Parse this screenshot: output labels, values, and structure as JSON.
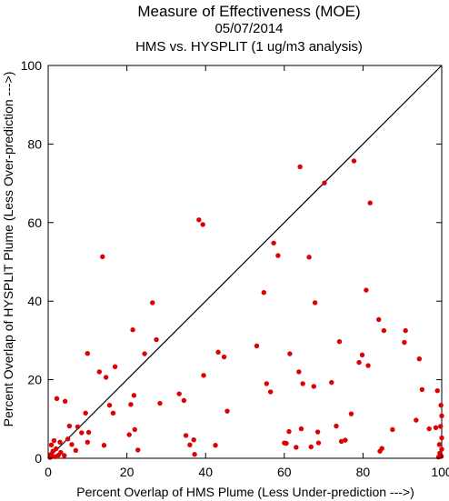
{
  "chart_data": {
    "type": "scatter",
    "title": "Measure of Effectiveness (MOE)",
    "subtitle_date": "05/07/2014",
    "subtitle_analysis": "HMS vs. HYSPLIT  (1 ug/m3 analysis)",
    "xlabel": "Percent Overlap of HMS Plume (Less Under-prediction --->)",
    "ylabel": "Percent Overlap of HYSPLIT Plume (Less Over-prediction --->)",
    "xlim": [
      0,
      100
    ],
    "ylim": [
      0,
      100
    ],
    "x_ticks": [
      "0",
      "20",
      "40",
      "60",
      "80",
      "100"
    ],
    "y_ticks": [
      "0",
      "20",
      "40",
      "60",
      "80",
      "100"
    ],
    "reference_line": "y = x",
    "grid": false,
    "colors": {
      "points": "#e00000",
      "line": "#000000",
      "axes": "#000000"
    },
    "points": [
      [
        0.5,
        0.2
      ],
      [
        0.7,
        1.0
      ],
      [
        0.8,
        3.4
      ],
      [
        1.0,
        0.6
      ],
      [
        1.2,
        1.8
      ],
      [
        1.5,
        4.5
      ],
      [
        1.8,
        0.4
      ],
      [
        2.0,
        2.4
      ],
      [
        2.2,
        15.2
      ],
      [
        2.6,
        0.8
      ],
      [
        3.0,
        4.1
      ],
      [
        3.2,
        1.5
      ],
      [
        4.1,
        0.7
      ],
      [
        4.3,
        14.5
      ],
      [
        5.0,
        4.9
      ],
      [
        5.4,
        8.2
      ],
      [
        6.0,
        3.5
      ],
      [
        7.0,
        2.0
      ],
      [
        7.5,
        8.0
      ],
      [
        8.5,
        6.5
      ],
      [
        9.5,
        11.5
      ],
      [
        10.0,
        26.7
      ],
      [
        10.3,
        6.6
      ],
      [
        10.0,
        4.1
      ],
      [
        13.0,
        22.0
      ],
      [
        13.8,
        51.3
      ],
      [
        14.2,
        3.3
      ],
      [
        14.7,
        20.6
      ],
      [
        15.6,
        13.5
      ],
      [
        16.5,
        11.5
      ],
      [
        17.0,
        23.3
      ],
      [
        20.6,
        6.0
      ],
      [
        21.0,
        13.7
      ],
      [
        21.5,
        32.7
      ],
      [
        21.8,
        16.0
      ],
      [
        22.0,
        7.3
      ],
      [
        22.8,
        2.1
      ],
      [
        24.5,
        26.6
      ],
      [
        26.5,
        39.6
      ],
      [
        27.5,
        30.2
      ],
      [
        28.4,
        14.0
      ],
      [
        33.3,
        16.4
      ],
      [
        34.5,
        14.7
      ],
      [
        35.0,
        5.8
      ],
      [
        36.0,
        3.4
      ],
      [
        37.0,
        4.7
      ],
      [
        37.2,
        1.0
      ],
      [
        38.3,
        60.7
      ],
      [
        39.3,
        59.5
      ],
      [
        39.5,
        21.1
      ],
      [
        42.5,
        3.3
      ],
      [
        43.2,
        27.0
      ],
      [
        44.7,
        25.8
      ],
      [
        45.5,
        12.0
      ],
      [
        53.0,
        28.6
      ],
      [
        54.8,
        42.2
      ],
      [
        55.5,
        19.0
      ],
      [
        56.5,
        16.9
      ],
      [
        57.3,
        54.8
      ],
      [
        58.4,
        51.6
      ],
      [
        60.0,
        3.9
      ],
      [
        60.5,
        3.8
      ],
      [
        61.2,
        6.8
      ],
      [
        61.4,
        26.6
      ],
      [
        63.0,
        2.8
      ],
      [
        63.7,
        22.0
      ],
      [
        64.0,
        74.2
      ],
      [
        64.3,
        7.5
      ],
      [
        64.7,
        19.0
      ],
      [
        66.3,
        51.2
      ],
      [
        66.8,
        2.9
      ],
      [
        67.5,
        18.3
      ],
      [
        67.8,
        39.6
      ],
      [
        68.5,
        6.7
      ],
      [
        68.7,
        3.9
      ],
      [
        70.2,
        70.1
      ],
      [
        72.0,
        19.3
      ],
      [
        73.2,
        8.2
      ],
      [
        74.0,
        29.7
      ],
      [
        74.5,
        4.3
      ],
      [
        75.5,
        4.6
      ],
      [
        77.0,
        11.3
      ],
      [
        77.7,
        75.7
      ],
      [
        79.0,
        24.4
      ],
      [
        79.8,
        26.3
      ],
      [
        80.8,
        42.8
      ],
      [
        81.3,
        23.6
      ],
      [
        81.8,
        65.0
      ],
      [
        84.0,
        35.3
      ],
      [
        84.3,
        1.8
      ],
      [
        84.8,
        2.5
      ],
      [
        85.3,
        32.5
      ],
      [
        87.5,
        7.3
      ],
      [
        90.5,
        29.5
      ],
      [
        90.8,
        32.5
      ],
      [
        93.5,
        9.7
      ],
      [
        94.3,
        25.3
      ],
      [
        95.0,
        17.5
      ],
      [
        96.8,
        7.5
      ],
      [
        98.5,
        7.8
      ],
      [
        98.9,
        17.2
      ],
      [
        99.2,
        0.3
      ],
      [
        99.4,
        3.5
      ],
      [
        99.5,
        1.3
      ],
      [
        99.7,
        8.1
      ],
      [
        99.8,
        13.5
      ],
      [
        99.9,
        0.5
      ],
      [
        100.0,
        10.8
      ],
      [
        100.0,
        5.2
      ],
      [
        100.0,
        2.3
      ]
    ]
  }
}
